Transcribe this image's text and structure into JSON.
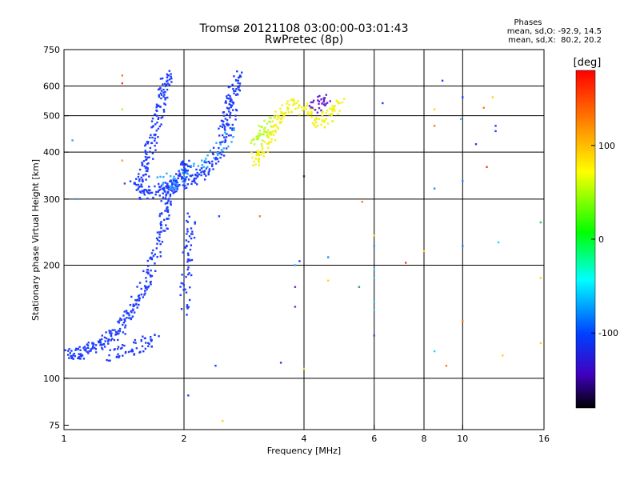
{
  "chart_data": {
    "type": "scatter",
    "title": "Tromsø 20121108 03:00:00-03:01:43",
    "subtitle": "RwPretec (8p)",
    "xlabel": "Frequency [MHz]",
    "ylabel": "Stationary phase Virtual Height [km]",
    "x_scale": "log",
    "y_scale": "log",
    "xlim": [
      1,
      16
    ],
    "ylim": [
      73,
      750
    ],
    "x_ticks": [
      1,
      2,
      4,
      6,
      8,
      10,
      16
    ],
    "y_ticks": [
      75,
      100,
      200,
      300,
      400,
      500,
      600,
      750
    ],
    "x_gridlines": [
      2,
      4,
      6,
      8,
      10
    ],
    "y_gridlines": [
      100,
      200,
      300,
      400,
      500,
      600
    ],
    "grid": true,
    "phase_stats": {
      "title": "Phases",
      "line1": "mean, sd,O: -92.9, 14.5",
      "line2": "mean, sd,X:  80.2, 20.2"
    },
    "colorbar": {
      "label": "[deg]",
      "range": [
        -180,
        180
      ],
      "ticks": [
        100,
        0,
        -100
      ],
      "placement": "right"
    },
    "traces": [
      {
        "name": "",
        "color": "#1f3cff",
        "phase": -100,
        "x": [
          1.02,
          1.06,
          1.1,
          1.15,
          1.2,
          1.25,
          1.3,
          1.35,
          1.4,
          1.45,
          1.5,
          1.55,
          1.6,
          1.65,
          1.7,
          1.75,
          1.78,
          1.8,
          1.82,
          1.85,
          1.9,
          1.95,
          2.0,
          2.03
        ],
        "y": [
          115,
          116,
          117,
          119,
          121,
          124,
          128,
          132,
          138,
          147,
          155,
          165,
          178,
          195,
          215,
          240,
          265,
          290,
          312,
          320,
          330,
          345,
          360,
          380
        ]
      },
      {
        "name": "",
        "color": "#1f3cff",
        "phase": -100,
        "x": [
          1.5,
          1.55,
          1.6,
          1.63,
          1.66,
          1.7,
          1.72,
          1.75,
          1.78,
          1.8,
          1.82
        ],
        "y": [
          330,
          340,
          360,
          390,
          420,
          460,
          500,
          540,
          580,
          620,
          640
        ]
      },
      {
        "name": "",
        "color": "#1f3cff",
        "phase": -100,
        "x": [
          1.55,
          1.6,
          1.7,
          1.8,
          1.9,
          2.0,
          2.1,
          2.2,
          2.3,
          2.4,
          2.5,
          2.6,
          2.7
        ],
        "y": [
          310,
          312,
          315,
          320,
          325,
          332,
          340,
          350,
          365,
          385,
          420,
          470,
          540
        ]
      },
      {
        "name": "",
        "color": "#1f3cff",
        "phase": -100,
        "x": [
          2.5,
          2.55,
          2.6,
          2.65,
          2.7,
          2.75
        ],
        "y": [
          460,
          500,
          540,
          580,
          610,
          640
        ]
      },
      {
        "name": "",
        "color": "#1f3cff",
        "phase": -100,
        "x": [
          2.0,
          2.02,
          2.04,
          2.06,
          2.08
        ],
        "y": [
          150,
          180,
          210,
          240,
          270
        ]
      },
      {
        "name": "",
        "color": "#1f3cff",
        "phase": -100,
        "x": [
          1.3,
          1.4,
          1.5,
          1.6,
          1.7
        ],
        "y": [
          115,
          118,
          121,
          124,
          127
        ]
      },
      {
        "name": "",
        "color": "#2aa7ff",
        "phase": -60,
        "x": [
          1.75,
          1.9,
          2.1,
          2.4,
          2.7
        ],
        "y": [
          340,
          330,
          360,
          400,
          460
        ]
      },
      {
        "name": "",
        "color": "#f2f21a",
        "phase": 90,
        "x": [
          3.0,
          3.1,
          3.2,
          3.3,
          3.4,
          3.5,
          3.6,
          3.8,
          4.0,
          4.2,
          4.4,
          4.6,
          4.8,
          5.0
        ],
        "y": [
          380,
          390,
          410,
          440,
          470,
          500,
          520,
          540,
          520,
          500,
          480,
          500,
          520,
          540
        ]
      },
      {
        "name": "",
        "color": "#b8ff2a",
        "phase": 60,
        "x": [
          3.0,
          3.1,
          3.2,
          3.3
        ],
        "y": [
          420,
          440,
          460,
          480
        ]
      },
      {
        "name": "",
        "color": "#6a1fd0",
        "phase": -140,
        "x": [
          4.2,
          4.4,
          4.6
        ],
        "y": [
          520,
          540,
          560
        ]
      }
    ],
    "scatter_points": [
      {
        "x": 1.4,
        "y": 640,
        "color": "#ff7a1a"
      },
      {
        "x": 1.4,
        "y": 610,
        "color": "#ff3a1a"
      },
      {
        "x": 1.4,
        "y": 520,
        "color": "#a6ff3a"
      },
      {
        "x": 1.4,
        "y": 380,
        "color": "#ff9a2a"
      },
      {
        "x": 1.42,
        "y": 330,
        "color": "#7a2ad0"
      },
      {
        "x": 1.05,
        "y": 430,
        "color": "#2aa7ff"
      },
      {
        "x": 1.07,
        "y": 300,
        "color": "#2aa7ff"
      },
      {
        "x": 2.05,
        "y": 90,
        "color": "#1f3cff"
      },
      {
        "x": 2.4,
        "y": 108,
        "color": "#1f3cff"
      },
      {
        "x": 2.45,
        "y": 270,
        "color": "#1f3cff"
      },
      {
        "x": 2.5,
        "y": 77,
        "color": "#ffd21a"
      },
      {
        "x": 3.1,
        "y": 270,
        "color": "#ff7a1a"
      },
      {
        "x": 3.5,
        "y": 110,
        "color": "#1f3cff"
      },
      {
        "x": 3.8,
        "y": 200,
        "color": "#2aa7ff"
      },
      {
        "x": 3.8,
        "y": 175,
        "color": "#7a2ad0"
      },
      {
        "x": 3.8,
        "y": 155,
        "color": "#7a2ad0"
      },
      {
        "x": 3.9,
        "y": 205,
        "color": "#1f3cff"
      },
      {
        "x": 4.0,
        "y": 345,
        "color": "#2a1f6a"
      },
      {
        "x": 4.0,
        "y": 106,
        "color": "#ffd21a"
      },
      {
        "x": 4.6,
        "y": 210,
        "color": "#1f8cff"
      },
      {
        "x": 4.6,
        "y": 182,
        "color": "#ffd21a"
      },
      {
        "x": 5.5,
        "y": 175,
        "color": "#2a9aa0"
      },
      {
        "x": 5.6,
        "y": 295,
        "color": "#ff7a1a"
      },
      {
        "x": 6.0,
        "y": 240,
        "color": "#ffd21a"
      },
      {
        "x": 6.0,
        "y": 225,
        "color": "#1f8cff"
      },
      {
        "x": 6.0,
        "y": 195,
        "color": "#2ad0ff"
      },
      {
        "x": 6.0,
        "y": 185,
        "color": "#2ad0ff"
      },
      {
        "x": 6.0,
        "y": 160,
        "color": "#2ad0ff"
      },
      {
        "x": 6.0,
        "y": 152,
        "color": "#2ad0ff"
      },
      {
        "x": 6.0,
        "y": 130,
        "color": "#7a2ad0"
      },
      {
        "x": 6.3,
        "y": 540,
        "color": "#1f3cff"
      },
      {
        "x": 7.2,
        "y": 203,
        "color": "#ff3a1a"
      },
      {
        "x": 8.0,
        "y": 218,
        "color": "#ffd21a"
      },
      {
        "x": 8.5,
        "y": 520,
        "color": "#ffd21a"
      },
      {
        "x": 8.5,
        "y": 470,
        "color": "#ff7a1a"
      },
      {
        "x": 8.5,
        "y": 320,
        "color": "#1f8cff"
      },
      {
        "x": 8.5,
        "y": 118,
        "color": "#2ad0ff"
      },
      {
        "x": 8.9,
        "y": 620,
        "color": "#1f3cff"
      },
      {
        "x": 9.1,
        "y": 108,
        "color": "#ff7a1a"
      },
      {
        "x": 9.9,
        "y": 490,
        "color": "#2ad0ff"
      },
      {
        "x": 10.0,
        "y": 560,
        "color": "#1f3cff"
      },
      {
        "x": 10.0,
        "y": 335,
        "color": "#1f8cff"
      },
      {
        "x": 10.0,
        "y": 225,
        "color": "#1f8cff"
      },
      {
        "x": 10.0,
        "y": 142,
        "color": "#ff7a1a"
      },
      {
        "x": 10.8,
        "y": 420,
        "color": "#1f3cff"
      },
      {
        "x": 11.3,
        "y": 525,
        "color": "#ff7a1a"
      },
      {
        "x": 11.5,
        "y": 365,
        "color": "#ff3a1a"
      },
      {
        "x": 11.9,
        "y": 560,
        "color": "#ffd21a"
      },
      {
        "x": 12.1,
        "y": 470,
        "color": "#1f3cff"
      },
      {
        "x": 12.1,
        "y": 455,
        "color": "#1f3cff"
      },
      {
        "x": 12.3,
        "y": 230,
        "color": "#2ad0ff"
      },
      {
        "x": 12.6,
        "y": 115,
        "color": "#ffd21a"
      },
      {
        "x": 15.7,
        "y": 260,
        "color": "#1fd060"
      },
      {
        "x": 15.7,
        "y": 185,
        "color": "#ffd21a"
      },
      {
        "x": 15.7,
        "y": 124,
        "color": "#ffd21a"
      }
    ]
  }
}
